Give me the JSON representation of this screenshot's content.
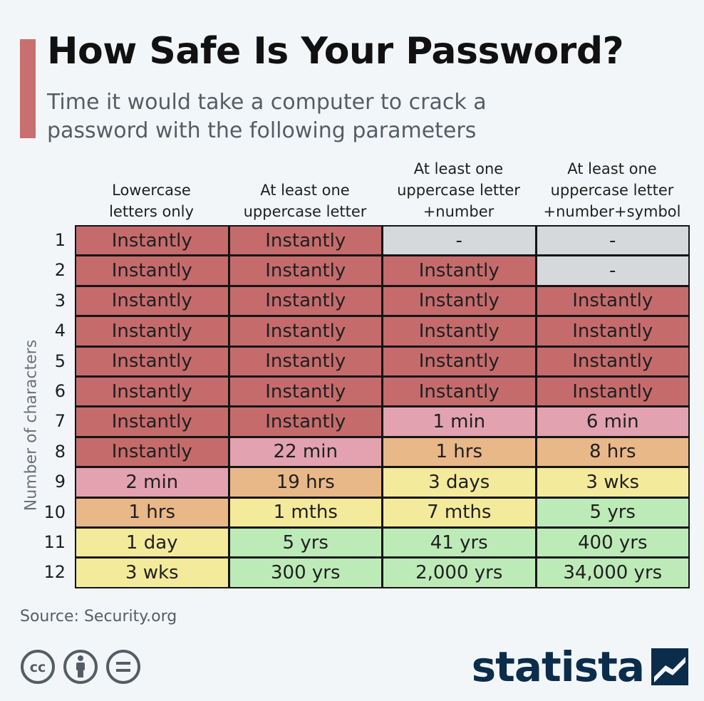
{
  "title": "How Safe Is Your Password?",
  "subtitle": "Time it would take a computer to crack a password with the following parameters",
  "source": "Source: Security.org",
  "brand": "statista",
  "colors": {
    "accent": "#c96f70",
    "Instantly": "#c56b6c",
    "minutes": "#e2a2b0",
    "hours": "#e9b888",
    "days_weeks_months": "#f4ea9c",
    "years": "#bdebb8",
    "na": "#d6d9dc"
  },
  "chart_data": {
    "type": "table",
    "ylabel": "Number of characters",
    "columns": [
      "Lowercase\nletters only",
      "At least one\nuppercase letter",
      "At least one\nuppercase letter\n+number",
      "At least one\nuppercase letter\n+number+symbol"
    ],
    "rows": [
      "1",
      "2",
      "3",
      "4",
      "5",
      "6",
      "7",
      "8",
      "9",
      "10",
      "11",
      "12"
    ],
    "values": [
      [
        "Instantly",
        "Instantly",
        "-",
        "-"
      ],
      [
        "Instantly",
        "Instantly",
        "Instantly",
        "-"
      ],
      [
        "Instantly",
        "Instantly",
        "Instantly",
        "Instantly"
      ],
      [
        "Instantly",
        "Instantly",
        "Instantly",
        "Instantly"
      ],
      [
        "Instantly",
        "Instantly",
        "Instantly",
        "Instantly"
      ],
      [
        "Instantly",
        "Instantly",
        "Instantly",
        "Instantly"
      ],
      [
        "Instantly",
        "Instantly",
        "1 min",
        "6 min"
      ],
      [
        "Instantly",
        "22 min",
        "1 hrs",
        "8 hrs"
      ],
      [
        "2 min",
        "19 hrs",
        "3 days",
        "3 wks"
      ],
      [
        "1 hrs",
        "1 mths",
        "7 mths",
        "5 yrs"
      ],
      [
        "1 day",
        "5 yrs",
        "41 yrs",
        "400 yrs"
      ],
      [
        "3 wks",
        "300 yrs",
        "2,000 yrs",
        "34,000 yrs"
      ]
    ]
  }
}
